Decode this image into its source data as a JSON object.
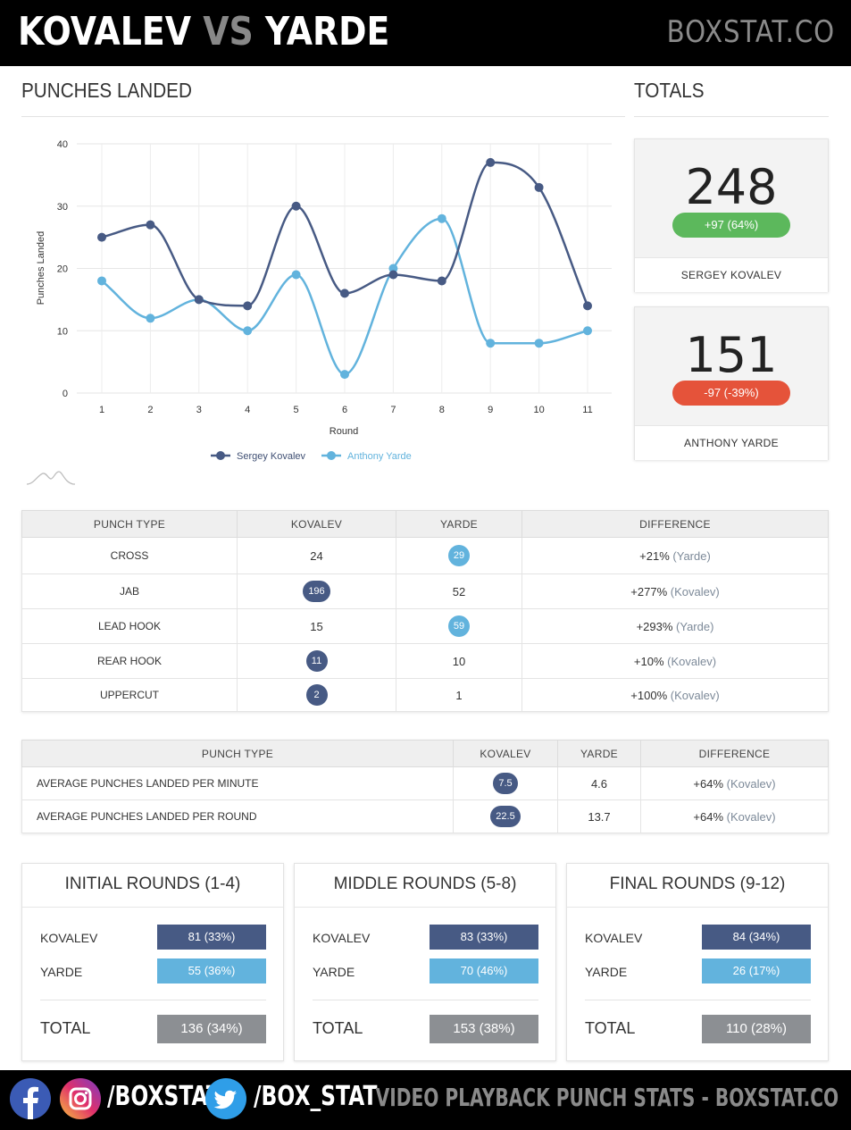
{
  "header": {
    "name_a": "KOVALEV",
    "vs": "VS",
    "name_b": "YARDE",
    "brand": "BOXSTAT.CO"
  },
  "sections": {
    "punches_landed": "PUNCHES LANDED",
    "totals": "TOTALS"
  },
  "colors": {
    "kovalev": "#475a84",
    "yarde": "#62b3dd",
    "positive": "#5cb85c",
    "negative": "#e5533a",
    "total": "#8c8f93"
  },
  "chart_data": {
    "type": "line",
    "smooth": true,
    "x": [
      1,
      2,
      3,
      4,
      5,
      6,
      7,
      8,
      9,
      10,
      11
    ],
    "xlabel": "Round",
    "ylabel": "Punches Landed",
    "ylim": [
      0,
      40
    ],
    "yticks": [
      0,
      10,
      20,
      30,
      40
    ],
    "grid": true,
    "legend": "bottom-center",
    "series": [
      {
        "name": "Sergey Kovalev",
        "color": "#475a84",
        "values": [
          25,
          27,
          15,
          14,
          30,
          16,
          19,
          18,
          37,
          33,
          14
        ]
      },
      {
        "name": "Anthony Yarde",
        "color": "#62b3dd",
        "values": [
          18,
          12,
          15,
          10,
          19,
          3,
          20,
          28,
          8,
          8,
          10
        ]
      }
    ]
  },
  "totals": [
    {
      "value": "248",
      "diff": "+97 (64%)",
      "name": "SERGEY KOVALEV",
      "pill": "positive"
    },
    {
      "value": "151",
      "diff": "-97 (-39%)",
      "name": "ANTHONY YARDE",
      "pill": "negative"
    }
  ],
  "punch_table": {
    "headers": [
      "PUNCH TYPE",
      "KOVALEV",
      "YARDE",
      "DIFFERENCE"
    ],
    "rows": [
      {
        "type": "CROSS",
        "kovalev": "24",
        "yarde": "29",
        "leader": "yarde",
        "diff": "+21%",
        "who": "(Yarde)"
      },
      {
        "type": "JAB",
        "kovalev": "196",
        "yarde": "52",
        "leader": "kovalev",
        "diff": "+277%",
        "who": "(Kovalev)"
      },
      {
        "type": "LEAD HOOK",
        "kovalev": "15",
        "yarde": "59",
        "leader": "yarde",
        "diff": "+293%",
        "who": "(Yarde)"
      },
      {
        "type": "REAR HOOK",
        "kovalev": "11",
        "yarde": "10",
        "leader": "kovalev",
        "diff": "+10%",
        "who": "(Kovalev)"
      },
      {
        "type": "UPPERCUT",
        "kovalev": "2",
        "yarde": "1",
        "leader": "kovalev",
        "diff": "+100%",
        "who": "(Kovalev)"
      }
    ]
  },
  "avg_table": {
    "headers": [
      "PUNCH TYPE",
      "KOVALEV",
      "YARDE",
      "DIFFERENCE"
    ],
    "rows": [
      {
        "type": "AVERAGE PUNCHES LANDED PER MINUTE",
        "kovalev": "7.5",
        "yarde": "4.6",
        "diff": "+64%",
        "who": "(Kovalev)"
      },
      {
        "type": "AVERAGE PUNCHES LANDED PER ROUND",
        "kovalev": "22.5",
        "yarde": "13.7",
        "diff": "+64%",
        "who": "(Kovalev)"
      }
    ]
  },
  "rounds": [
    {
      "title": "INITIAL ROUNDS (1-4)",
      "k_label": "KOVALEV",
      "k_value": "81 (33%)",
      "y_label": "YARDE",
      "y_value": "55 (36%)",
      "total_label": "TOTAL",
      "total_value": "136 (34%)"
    },
    {
      "title": "MIDDLE ROUNDS (5-8)",
      "k_label": "KOVALEV",
      "k_value": "83 (33%)",
      "y_label": "YARDE",
      "y_value": "70 (46%)",
      "total_label": "TOTAL",
      "total_value": "153 (38%)"
    },
    {
      "title": "FINAL ROUNDS (9-12)",
      "k_label": "KOVALEV",
      "k_value": "84 (34%)",
      "y_label": "YARDE",
      "y_value": "26 (17%)",
      "total_label": "TOTAL",
      "total_value": "110 (28%)"
    }
  ],
  "footer": {
    "icons": [
      "facebook-icon",
      "instagram-icon",
      "twitter-icon"
    ],
    "instagram_handle": "/BOXSTAT",
    "twitter_handle": "/BOX_STAT",
    "tagline": "VIDEO PLAYBACK PUNCH STATS - BOXSTAT.CO"
  }
}
